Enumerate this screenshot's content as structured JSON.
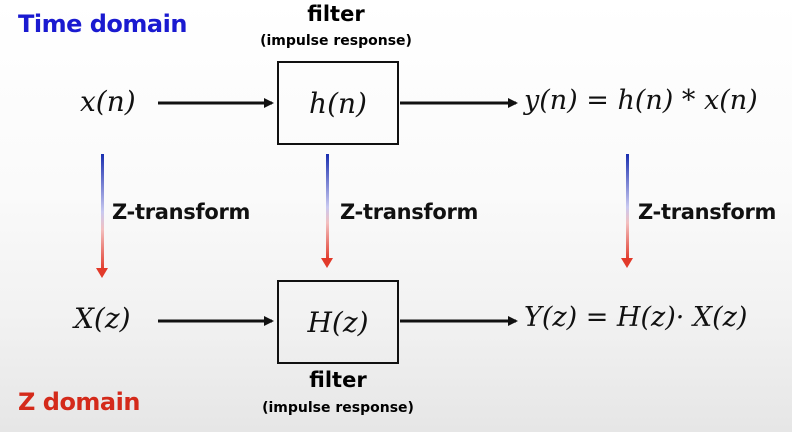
{
  "labels": {
    "time_domain": "Time domain",
    "z_domain": "Z domain"
  },
  "top_filter": {
    "title": "filter",
    "subtitle": "(impulse response)",
    "box_text": "h(n)"
  },
  "bottom_filter": {
    "title": "filter",
    "subtitle": "(impulse response)",
    "box_text": "H(z)"
  },
  "time_row": {
    "input": "x(n)",
    "output": "y(n) = h(n) * x(n)"
  },
  "z_row": {
    "input": "X(z)",
    "output": "Y(z) = H(z)· X(z)"
  },
  "transforms": {
    "left": "Z-transform",
    "middle": "Z-transform",
    "right": "Z-transform"
  },
  "colors": {
    "time_domain": "#1a1ad0",
    "z_domain": "#d42a1a",
    "arrow_top": "#1a2fb0",
    "arrow_bottom": "#e23a2a",
    "ink": "#111111"
  }
}
